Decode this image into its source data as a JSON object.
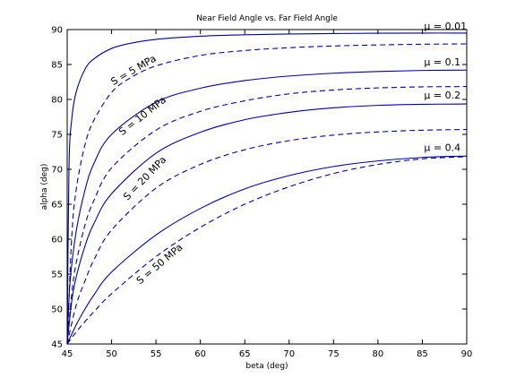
{
  "chart_data": {
    "type": "line",
    "title": "Near Field Angle vs. Far Field Angle",
    "xlabel": "beta (deg)",
    "ylabel": "alpha (deg)",
    "xlim": [
      45,
      90
    ],
    "ylim": [
      45,
      90
    ],
    "xticks": [
      "45",
      "50",
      "55",
      "60",
      "65",
      "70",
      "75",
      "80",
      "85",
      "90"
    ],
    "yticks": [
      "45",
      "50",
      "55",
      "60",
      "65",
      "70",
      "75",
      "80",
      "85",
      "90"
    ],
    "grid": false,
    "legend": "none",
    "line_color": "#0000aa",
    "series": [
      {
        "style": "solid",
        "x": [
          45,
          45.2,
          45.5,
          46,
          47,
          48,
          50,
          52,
          55,
          60,
          65,
          70,
          75,
          80,
          85,
          90
        ],
        "y": [
          45,
          70,
          77,
          81,
          84.3,
          85.8,
          87.3,
          88.0,
          88.6,
          89.05,
          89.25,
          89.37,
          89.43,
          89.48,
          89.5,
          89.5
        ]
      },
      {
        "style": "dashed",
        "x": [
          45,
          45.5,
          46,
          47,
          48,
          50,
          52,
          55,
          60,
          65,
          70,
          75,
          80,
          85,
          90
        ],
        "y": [
          45,
          60,
          67,
          73.5,
          77,
          81,
          83,
          84.8,
          86.3,
          87.0,
          87.4,
          87.65,
          87.8,
          87.9,
          87.95
        ]
      },
      {
        "style": "solid",
        "x": [
          45,
          45.3,
          46,
          47,
          48,
          50,
          55,
          60,
          65,
          70,
          75,
          80,
          85,
          90
        ],
        "y": [
          45,
          53.5,
          61,
          67,
          70.8,
          75,
          79.6,
          81.6,
          82.7,
          83.35,
          83.75,
          84.0,
          84.15,
          84.2
        ]
      },
      {
        "style": "dashed",
        "x": [
          45,
          45.5,
          46,
          47,
          48,
          50,
          55,
          60,
          65,
          70,
          75,
          80,
          85,
          90
        ],
        "y": [
          45,
          52,
          56.5,
          62,
          65.5,
          70.2,
          75.6,
          78.3,
          79.8,
          80.8,
          81.35,
          81.65,
          81.8,
          81.85
        ]
      },
      {
        "style": "solid",
        "x": [
          45,
          45.5,
          46,
          47,
          48,
          50,
          55,
          60,
          65,
          70,
          75,
          80,
          85,
          90
        ],
        "y": [
          45,
          51,
          54.5,
          59,
          62.2,
          66.5,
          72.3,
          75.3,
          77.1,
          78.15,
          78.8,
          79.15,
          79.3,
          79.35
        ]
      },
      {
        "style": "dashed",
        "x": [
          45,
          46,
          47,
          48,
          50,
          55,
          60,
          65,
          70,
          75,
          80,
          85,
          90
        ],
        "y": [
          45,
          50.5,
          54,
          57,
          61.3,
          67.3,
          70.7,
          72.8,
          74.1,
          74.9,
          75.35,
          75.6,
          75.7
        ]
      },
      {
        "style": "solid",
        "x": [
          45,
          46,
          47,
          48,
          50,
          55,
          60,
          65,
          70,
          75,
          80,
          85,
          90
        ],
        "y": [
          45,
          47.7,
          50,
          52,
          55.3,
          60.6,
          64.4,
          67.2,
          69.1,
          70.4,
          71.2,
          71.7,
          71.9
        ]
      },
      {
        "style": "dashed",
        "x": [
          45,
          46,
          47,
          48,
          50,
          55,
          60,
          65,
          70,
          75,
          80,
          85,
          90
        ],
        "y": [
          45,
          46.7,
          48.2,
          49.6,
          52.2,
          57.5,
          61.7,
          65.0,
          67.5,
          69.4,
          70.7,
          71.5,
          71.8
        ]
      }
    ],
    "annotations": [
      {
        "text": "μ = 0.01",
        "x": 85.2,
        "y": 90.0,
        "rotate": 0
      },
      {
        "text": "μ = 0.1",
        "x": 85.2,
        "y": 84.9,
        "rotate": 0
      },
      {
        "text": "μ = 0.2",
        "x": 85.2,
        "y": 80.1,
        "rotate": 0
      },
      {
        "text": "μ = 0.4",
        "x": 85.2,
        "y": 72.6,
        "rotate": 0
      },
      {
        "text": "S = 5 MPa",
        "x": 50.2,
        "y": 82.0,
        "rotate": -30
      },
      {
        "text": "S = 10 MPa",
        "x": 51.2,
        "y": 74.8,
        "rotate": -38
      },
      {
        "text": "S = 20 MPa",
        "x": 51.8,
        "y": 65.5,
        "rotate": -46
      },
      {
        "text": "S = 50 MPa",
        "x": 53.2,
        "y": 53.5,
        "rotate": -40
      }
    ]
  }
}
